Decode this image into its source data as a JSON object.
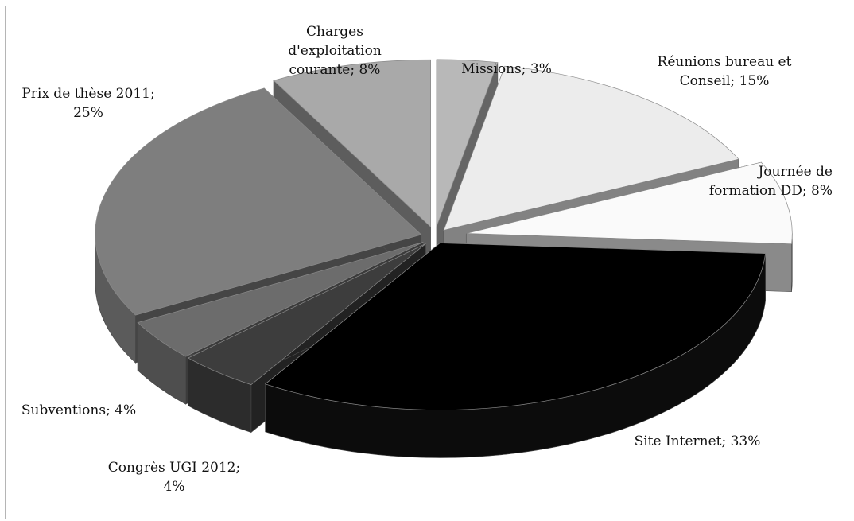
{
  "chart_data": {
    "type": "pie",
    "style": "3d-exploded",
    "slices": [
      {
        "label_lines": [
          "Missions; 3%"
        ],
        "category": "Missions",
        "value": 3,
        "color": "#b8b8b8"
      },
      {
        "label_lines": [
          "Réunions bureau et",
          "Conseil; 15%"
        ],
        "category": "Réunions bureau et Conseil",
        "value": 15,
        "color": "#ececec"
      },
      {
        "label_lines": [
          "Journée de",
          "formation DD; 8%"
        ],
        "category": "Journée de formation DD",
        "value": 8,
        "color": "#fafafa"
      },
      {
        "label_lines": [
          "Site Internet; 33%"
        ],
        "category": "Site Internet",
        "value": 33,
        "color": "#000000"
      },
      {
        "label_lines": [
          "Congrès UGI 2012;",
          "4%"
        ],
        "category": "Congrès UGI 2012",
        "value": 4,
        "color": "#3d3d3d"
      },
      {
        "label_lines": [
          "Subventions; 4%"
        ],
        "category": "Subventions",
        "value": 4,
        "color": "#6c6c6c"
      },
      {
        "label_lines": [
          "Prix de thèse 2011;",
          "25%"
        ],
        "category": "Prix de thèse 2011",
        "value": 25,
        "color": "#7e7e7e"
      },
      {
        "label_lines": [
          "Charges",
          "d'exploitation",
          "courante; 8%"
        ],
        "category": "Charges d'exploitation courante",
        "value": 8,
        "color": "#a9a9a9"
      }
    ]
  }
}
